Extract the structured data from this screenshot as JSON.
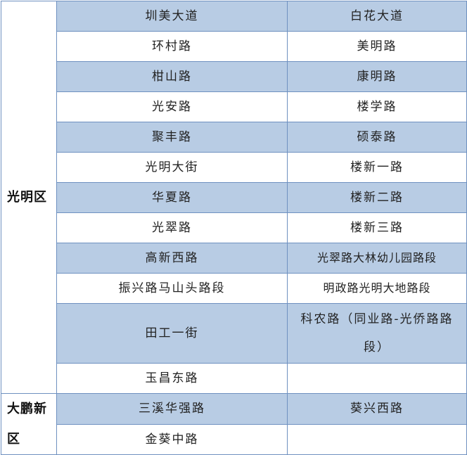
{
  "colors": {
    "row_fill": "#b8cce4",
    "border": "#6f91c0"
  },
  "districts": [
    {
      "name": "光明区",
      "rows": [
        [
          "圳美大道",
          "白花大道"
        ],
        [
          "环村路",
          "美明路"
        ],
        [
          "柑山路",
          "康明路"
        ],
        [
          "光安路",
          "楼学路"
        ],
        [
          "聚丰路",
          "硕泰路"
        ],
        [
          "光明大街",
          "楼新一路"
        ],
        [
          "华夏路",
          "楼新二路"
        ],
        [
          "光翠路",
          "楼新三路"
        ],
        [
          "高新西路",
          "光翠路大林幼儿园路段"
        ],
        [
          "振兴路马山头路段",
          "明政路光明大地路段"
        ],
        [
          "田工一街",
          "科农路（同业路-光侨路路段）"
        ],
        [
          "玉昌东路",
          ""
        ]
      ]
    },
    {
      "name": "大鹏新区",
      "rows": [
        [
          "三溪华强路",
          "葵兴西路"
        ],
        [
          "金葵中路",
          ""
        ]
      ]
    }
  ]
}
